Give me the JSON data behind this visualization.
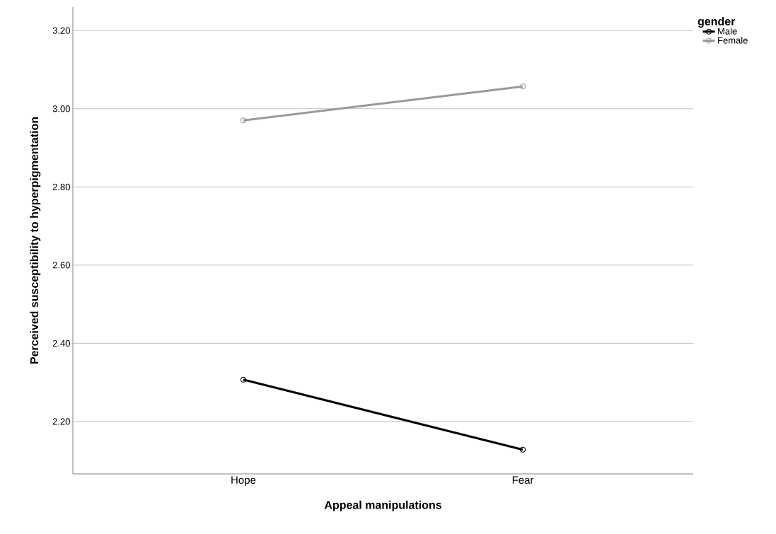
{
  "chart_data": {
    "type": "line",
    "xlabel": "Appeal manipulations",
    "ylabel": "Perceived susceptibility to hyperpigmentation",
    "legend_title": "gender",
    "categories": [
      "Hope",
      "Fear"
    ],
    "series": [
      {
        "name": "Male",
        "color": "#000000",
        "values": [
          2.307,
          2.128
        ]
      },
      {
        "name": "Female",
        "color": "#999999",
        "values": [
          2.97,
          3.057
        ]
      }
    ],
    "ylim": [
      2.066,
      3.26
    ],
    "yticks": [
      {
        "value": 2.2,
        "label": "2.20"
      },
      {
        "value": 2.4,
        "label": "2.40"
      },
      {
        "value": 2.6,
        "label": "2.60"
      },
      {
        "value": 2.8,
        "label": "2.80"
      },
      {
        "value": 3.0,
        "label": "3.00"
      },
      {
        "value": 3.2,
        "label": "3.20"
      }
    ],
    "grid": "y",
    "legend": "top right",
    "marker": "circle",
    "line_style": "solid"
  }
}
